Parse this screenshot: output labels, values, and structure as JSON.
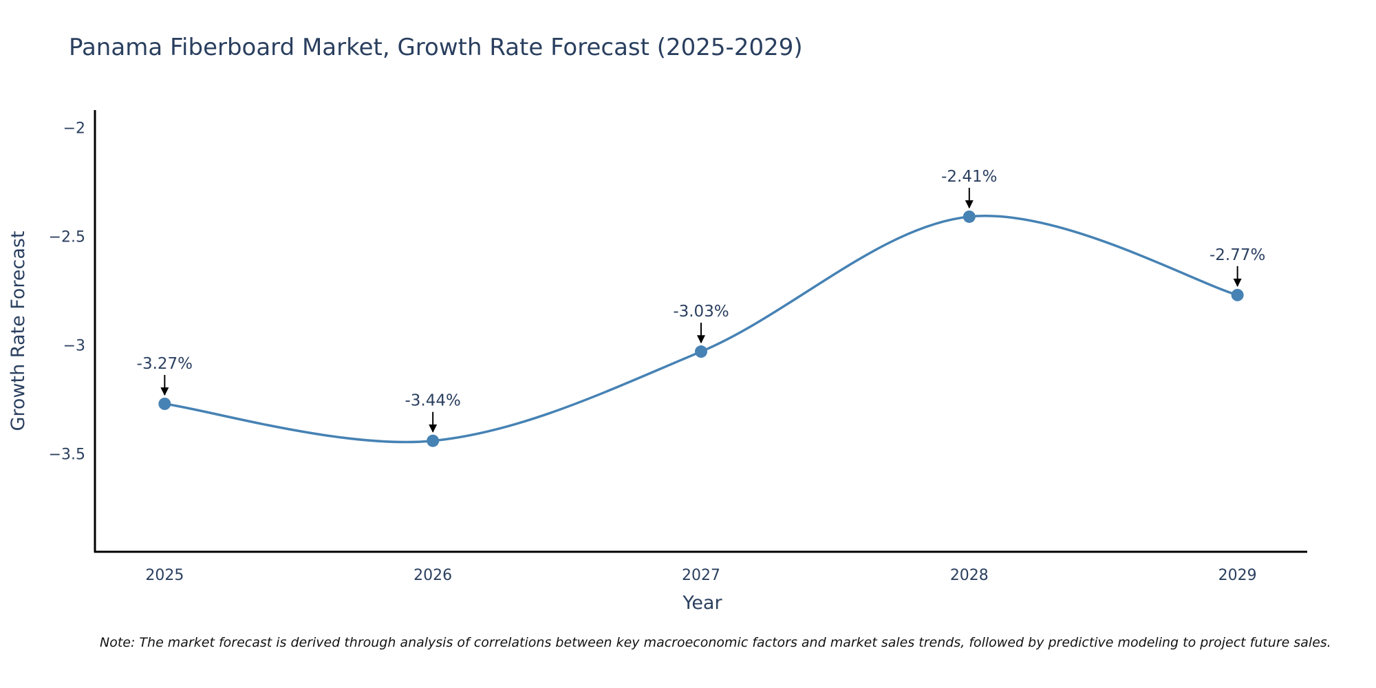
{
  "chart_data": {
    "type": "line",
    "title": "Panama Fiberboard Market, Growth Rate Forecast (2025-2029)",
    "xlabel": "Year",
    "ylabel": "Growth Rate Forecast",
    "categories": [
      "2025",
      "2026",
      "2027",
      "2028",
      "2029"
    ],
    "series": [
      {
        "name": "Growth Rate Forecast",
        "values": [
          -3.27,
          -3.44,
          -3.03,
          -2.41,
          -2.77
        ],
        "line_shape": "spline",
        "color": "#4682b4"
      }
    ],
    "data_labels": [
      "-3.27%",
      "-3.44%",
      "-3.03%",
      "-2.41%",
      "-2.77%"
    ],
    "ylim": [
      -3.95,
      -1.92
    ],
    "xlim": [
      -0.26,
      4.26
    ],
    "yticks": [
      -3.5,
      -3,
      -2.5,
      -2
    ],
    "ytick_labels": [
      "−3.5",
      "−3",
      "−2.5",
      "−2"
    ],
    "grid": false,
    "note": "Note: The market forecast is derived through analysis of correlations between key macroeconomic factors and market sales trends, followed by predictive modeling to project future sales."
  }
}
